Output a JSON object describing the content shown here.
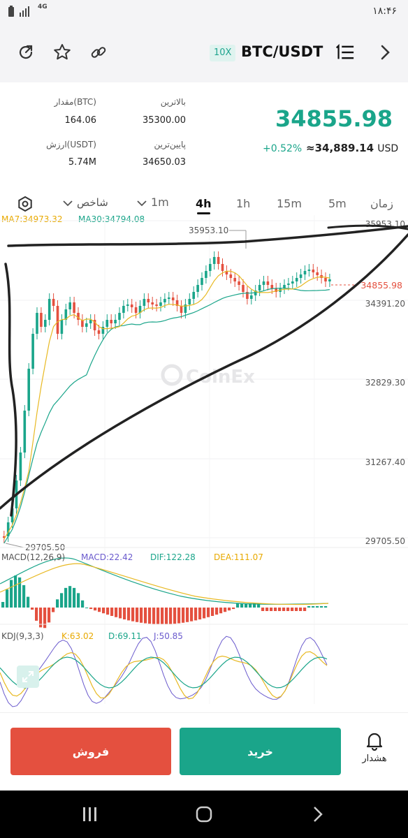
{
  "status_bar": {
    "time": "۱۸:۴۶",
    "network": "4G"
  },
  "header": {
    "leverage": "10X",
    "pair": "BTC/USDT"
  },
  "ticker": {
    "last_price": "34855.98",
    "change": "+0.52%",
    "usd_approx": "≈34,889.14",
    "usd_unit": "USD",
    "high_label": "بالاترین",
    "high_value": "35300.00",
    "low_label": "پایین‌ترین",
    "low_value": "34650.03",
    "amount_label": "مقدار(BTC)",
    "amount_value": "164.06",
    "value_label": "ارزش(USDT)",
    "value_value": "5.74M"
  },
  "timeframe_tabs": [
    "زمان",
    "5m",
    "15m",
    "1h",
    "4h",
    "1m"
  ],
  "active_tab": "4h",
  "indicator_label": "شاخص",
  "moving_averages": {
    "ma7": "MA7:34973.32",
    "ma30": "MA30:34794.08"
  },
  "chart_data": {
    "type": "candlestick",
    "price_axis": [
      "35953.10",
      "34391.20",
      "32829.30",
      "31267.40",
      "29705.50"
    ],
    "high_marker": "35953.10",
    "low_marker": "29705.50",
    "last_price_marker": "34855.98",
    "watermark": "CoinEx"
  },
  "macd": {
    "label": "MACD(12,26,9)",
    "macd": "MACD:22.42",
    "dif": "DIF:122.28",
    "dea": "DEA:111.07"
  },
  "kdj": {
    "label": "KDJ(9,3,3)",
    "k": "K:63.02",
    "d": "D:69.11",
    "j": "J:50.85"
  },
  "actions": {
    "sell": "فروش",
    "buy": "خرید",
    "alarm": "هشدار"
  },
  "colors": {
    "up": "#1aa58a",
    "down": "#e4503f",
    "ma7": "#e8b923",
    "ma30": "#1aa58a"
  }
}
